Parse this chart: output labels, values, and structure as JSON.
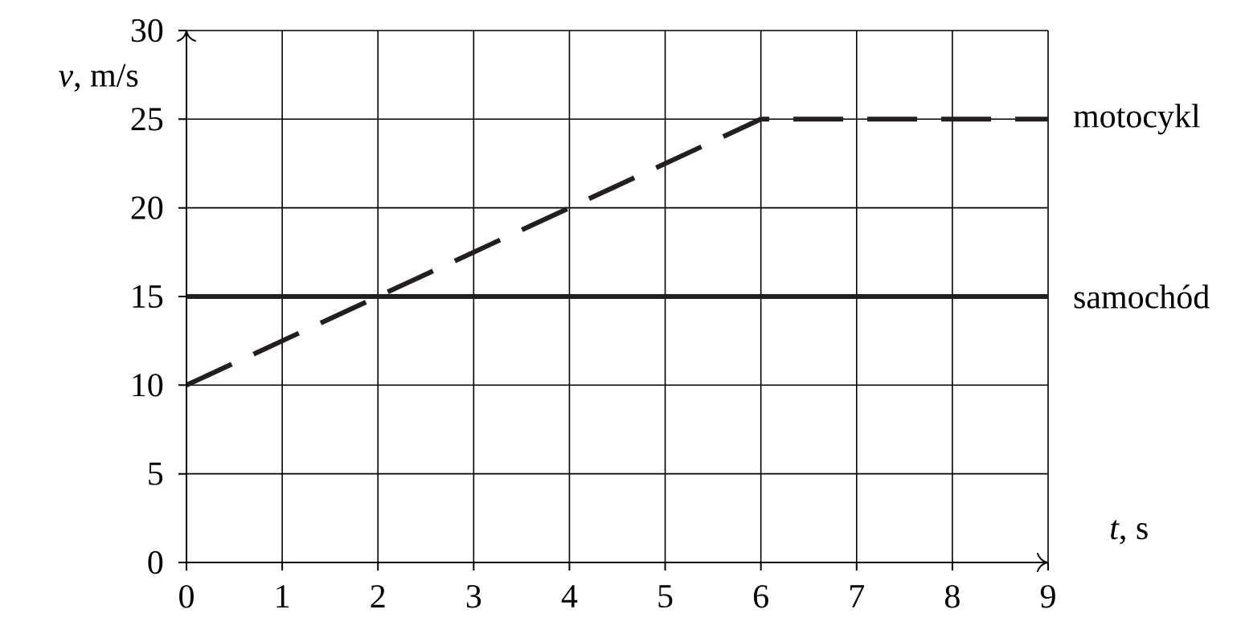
{
  "chart_data": {
    "type": "line",
    "xlabel": "*t*, s",
    "ylabel": "*v*, m/s",
    "xlim": [
      0,
      9
    ],
    "ylim": [
      0,
      30
    ],
    "xticks": [
      0,
      1,
      2,
      3,
      4,
      5,
      6,
      7,
      8,
      9
    ],
    "yticks": [
      0,
      5,
      10,
      15,
      20,
      25,
      30
    ],
    "grid": true,
    "series": [
      {
        "name": "motocykl",
        "color": "#231f20",
        "line_style": "dashed",
        "x": [
          0,
          6,
          9
        ],
        "values": [
          10,
          25,
          25
        ]
      },
      {
        "name": "samochód",
        "color": "#231f20",
        "line_style": "solid",
        "x": [
          0,
          9
        ],
        "values": [
          15,
          15
        ]
      }
    ]
  }
}
